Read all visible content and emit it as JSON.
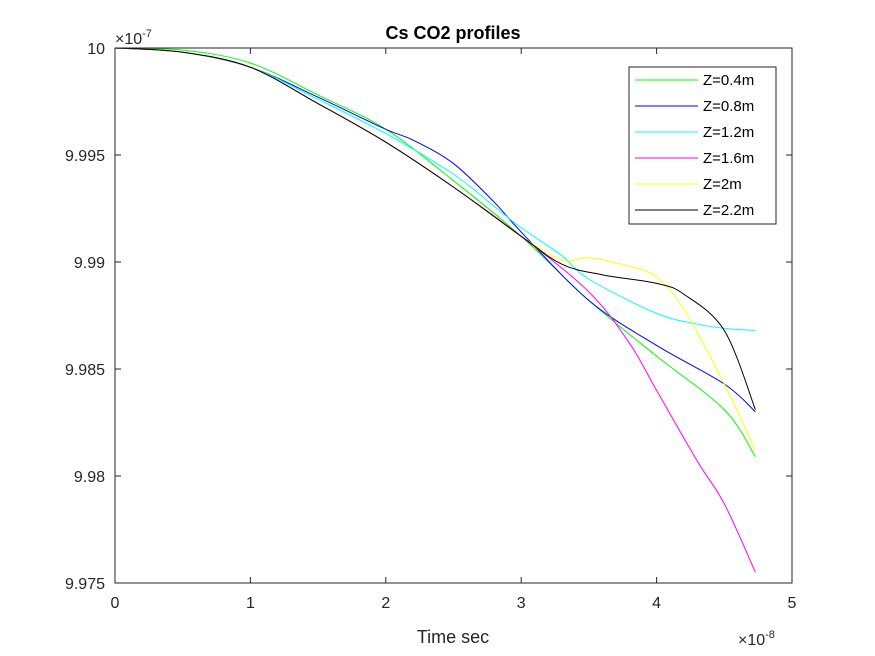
{
  "chart_data": {
    "type": "line",
    "title": "Cs CO2 profiles",
    "xlabel": "Time sec",
    "ylabel": "",
    "x_exponent": {
      "base": "×10",
      "power": "-8"
    },
    "y_exponent": {
      "base": "×10",
      "power": "-7"
    },
    "xlim": [
      0,
      5
    ],
    "ylim": [
      9.975,
      10
    ],
    "x_ticks": [
      0,
      1,
      2,
      3,
      4,
      5
    ],
    "y_ticks": [
      9.975,
      9.98,
      9.985,
      9.99,
      9.995,
      10
    ],
    "x_tick_labels": [
      "0",
      "1",
      "2",
      "3",
      "4",
      "5"
    ],
    "y_tick_labels": [
      "9.975",
      "9.98",
      "9.985",
      "9.99",
      "9.995",
      "10"
    ],
    "grid": false,
    "legend_position": "top-right",
    "series": [
      {
        "name": "Z=0.4m",
        "color": "#00ff00",
        "points": [
          [
            0,
            10
          ],
          [
            0.5,
            9.9999
          ],
          [
            1,
            9.9993
          ],
          [
            1.5,
            9.9978
          ],
          [
            2,
            9.9962
          ],
          [
            2.5,
            9.9938
          ],
          [
            3,
            9.9912
          ],
          [
            3.5,
            9.9882
          ],
          [
            4,
            9.9856
          ],
          [
            4.5,
            9.9831
          ],
          [
            4.73,
            9.9809
          ]
        ]
      },
      {
        "name": "Z=0.8m",
        "color": "#0000ff",
        "points": [
          [
            0,
            10
          ],
          [
            0.5,
            9.9998
          ],
          [
            1,
            9.9991
          ],
          [
            1.5,
            9.9977
          ],
          [
            2,
            9.9962
          ],
          [
            2.2,
            9.9957
          ],
          [
            2.5,
            9.9946
          ],
          [
            2.8,
            9.9928
          ],
          [
            3,
            9.9914
          ],
          [
            3.5,
            9.9882
          ],
          [
            4,
            9.9861
          ],
          [
            4.5,
            9.9843
          ],
          [
            4.73,
            9.983
          ]
        ]
      },
      {
        "name": "Z=1.2m",
        "color": "#00ffff",
        "points": [
          [
            0,
            10
          ],
          [
            0.5,
            9.9998
          ],
          [
            1,
            9.9991
          ],
          [
            1.5,
            9.9976
          ],
          [
            2,
            9.996
          ],
          [
            2.5,
            9.9941
          ],
          [
            2.8,
            9.9926
          ],
          [
            3,
            9.9916
          ],
          [
            3.3,
            9.9903
          ],
          [
            3.5,
            9.9892
          ],
          [
            4,
            9.9876
          ],
          [
            4.3,
            9.9871
          ],
          [
            4.5,
            9.9869
          ],
          [
            4.73,
            9.9868
          ]
        ]
      },
      {
        "name": "Z=1.6m",
        "color": "#ff00ff",
        "points": [
          [
            0,
            10
          ],
          [
            0.5,
            9.9998
          ],
          [
            1,
            9.9991
          ],
          [
            1.5,
            9.9974
          ],
          [
            2,
            9.9956
          ],
          [
            2.5,
            9.9935
          ],
          [
            3,
            9.9912
          ],
          [
            3.5,
            9.9886
          ],
          [
            3.8,
            9.9862
          ],
          [
            4,
            9.984
          ],
          [
            4.3,
            9.9807
          ],
          [
            4.5,
            9.9787
          ],
          [
            4.73,
            9.9755
          ]
        ]
      },
      {
        "name": "Z=2m",
        "color": "#ffff00",
        "points": [
          [
            0,
            10
          ],
          [
            0.5,
            9.9998
          ],
          [
            1,
            9.9991
          ],
          [
            1.5,
            9.9974
          ],
          [
            2,
            9.9956
          ],
          [
            2.5,
            9.9935
          ],
          [
            3,
            9.9912
          ],
          [
            3.3,
            9.9901
          ],
          [
            3.5,
            9.9902
          ],
          [
            3.8,
            9.9898
          ],
          [
            4,
            9.9893
          ],
          [
            4.2,
            9.9878
          ],
          [
            4.5,
            9.9843
          ],
          [
            4.73,
            9.9812
          ]
        ]
      },
      {
        "name": "Z=2.2m",
        "color": "#000000",
        "points": [
          [
            0,
            10
          ],
          [
            0.5,
            9.9998
          ],
          [
            1,
            9.9991
          ],
          [
            1.5,
            9.9974
          ],
          [
            2,
            9.9956
          ],
          [
            2.5,
            9.9935
          ],
          [
            3,
            9.9912
          ],
          [
            3.3,
            9.9899
          ],
          [
            3.6,
            9.9894
          ],
          [
            4,
            9.989
          ],
          [
            4.2,
            9.9885
          ],
          [
            4.5,
            9.9868
          ],
          [
            4.73,
            9.9831
          ]
        ]
      }
    ]
  }
}
